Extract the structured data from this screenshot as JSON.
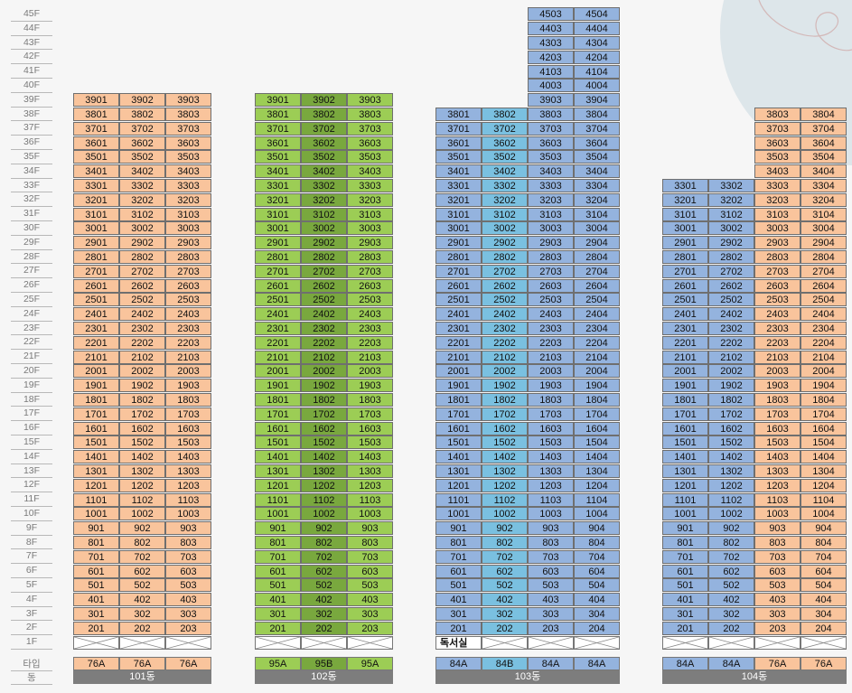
{
  "floors": [
    "45F",
    "44F",
    "43F",
    "42F",
    "41F",
    "40F",
    "39F",
    "38F",
    "37F",
    "36F",
    "35F",
    "34F",
    "33F",
    "32F",
    "31F",
    "30F",
    "29F",
    "28F",
    "27F",
    "26F",
    "25F",
    "24F",
    "23F",
    "22F",
    "21F",
    "20F",
    "19F",
    "18F",
    "17F",
    "16F",
    "15F",
    "14F",
    "13F",
    "12F",
    "11F",
    "10F",
    "9F",
    "8F",
    "7F",
    "6F",
    "5F",
    "4F",
    "3F",
    "2F",
    "1F"
  ],
  "row_labels": {
    "type": "타입",
    "building": "동"
  },
  "colors": {
    "orange": "#f9c49c",
    "green": "#9ccd55",
    "green_dark": "#79a83e",
    "blue": "#94b3de",
    "blue_light": "#7ac0e0",
    "building_bar": "#7d7d7d",
    "page_bg": "#f6f6f6",
    "deco_circle": "#dde6ea"
  },
  "buildings": [
    {
      "name": "101동",
      "columns": [
        {
          "line": "01",
          "type": "76A",
          "color": "orange",
          "top_floor": 39
        },
        {
          "line": "02",
          "type": "76A",
          "color": "orange",
          "top_floor": 39
        },
        {
          "line": "03",
          "type": "76A",
          "color": "orange",
          "top_floor": 39
        }
      ]
    },
    {
      "name": "102동",
      "columns": [
        {
          "line": "01",
          "type": "95A",
          "color": "green",
          "top_floor": 39
        },
        {
          "line": "02",
          "type": "95B",
          "color": "green_dark",
          "top_floor": 39
        },
        {
          "line": "03",
          "type": "95A",
          "color": "green",
          "top_floor": 39
        }
      ]
    },
    {
      "name": "103동",
      "first_floor_label": "독서실",
      "columns": [
        {
          "line": "01",
          "type": "84A",
          "color": "blue",
          "top_floor": 38
        },
        {
          "line": "02",
          "type": "84B",
          "color": "blue_light",
          "top_floor": 38
        },
        {
          "line": "03",
          "type": "84A",
          "color": "blue",
          "top_floor": 45
        },
        {
          "line": "04",
          "type": "84A",
          "color": "blue",
          "top_floor": 45
        }
      ]
    },
    {
      "name": "104동",
      "columns": [
        {
          "line": "01",
          "type": "84A",
          "color": "blue",
          "top_floor": 33
        },
        {
          "line": "02",
          "type": "84A",
          "color": "blue",
          "top_floor": 33
        },
        {
          "line": "03",
          "type": "76A",
          "color": "orange",
          "top_floor": 38
        },
        {
          "line": "04",
          "type": "76A",
          "color": "orange",
          "top_floor": 38
        }
      ]
    }
  ]
}
